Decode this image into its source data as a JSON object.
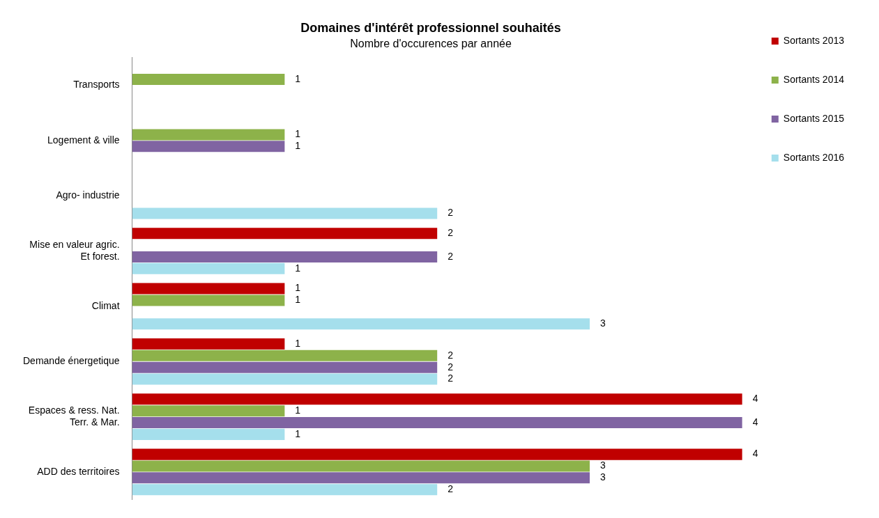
{
  "chart_data": {
    "type": "bar",
    "orientation": "horizontal",
    "tick_labels": "y",
    "title": "Domaines d'intérêt professionnel souhaités",
    "subtitle": "Nombre d'occurences par année",
    "categories": [
      "Transports",
      "Logement & ville",
      "Agro- industrie",
      "Mise en valeur agric. Et forest.",
      "Climat",
      "Demande énergetique",
      "Espaces & ress. Nat. Terr. & Mar.",
      "ADD des territoires"
    ],
    "series": [
      {
        "name": "Sortants 2013",
        "color": "#c00000",
        "values": [
          null,
          null,
          null,
          2,
          1,
          1,
          4,
          4
        ]
      },
      {
        "name": "Sortants 2014",
        "color": "#8db24a",
        "values": [
          1,
          1,
          null,
          null,
          1,
          2,
          1,
          3
        ]
      },
      {
        "name": "Sortants 2015",
        "color": "#8064a2",
        "values": [
          null,
          1,
          null,
          2,
          null,
          2,
          4,
          3
        ]
      },
      {
        "name": "Sortants 2016",
        "color": "#a5dfec",
        "values": [
          null,
          null,
          2,
          1,
          3,
          2,
          1,
          2
        ]
      }
    ],
    "data_labels": true,
    "legend": "right"
  }
}
